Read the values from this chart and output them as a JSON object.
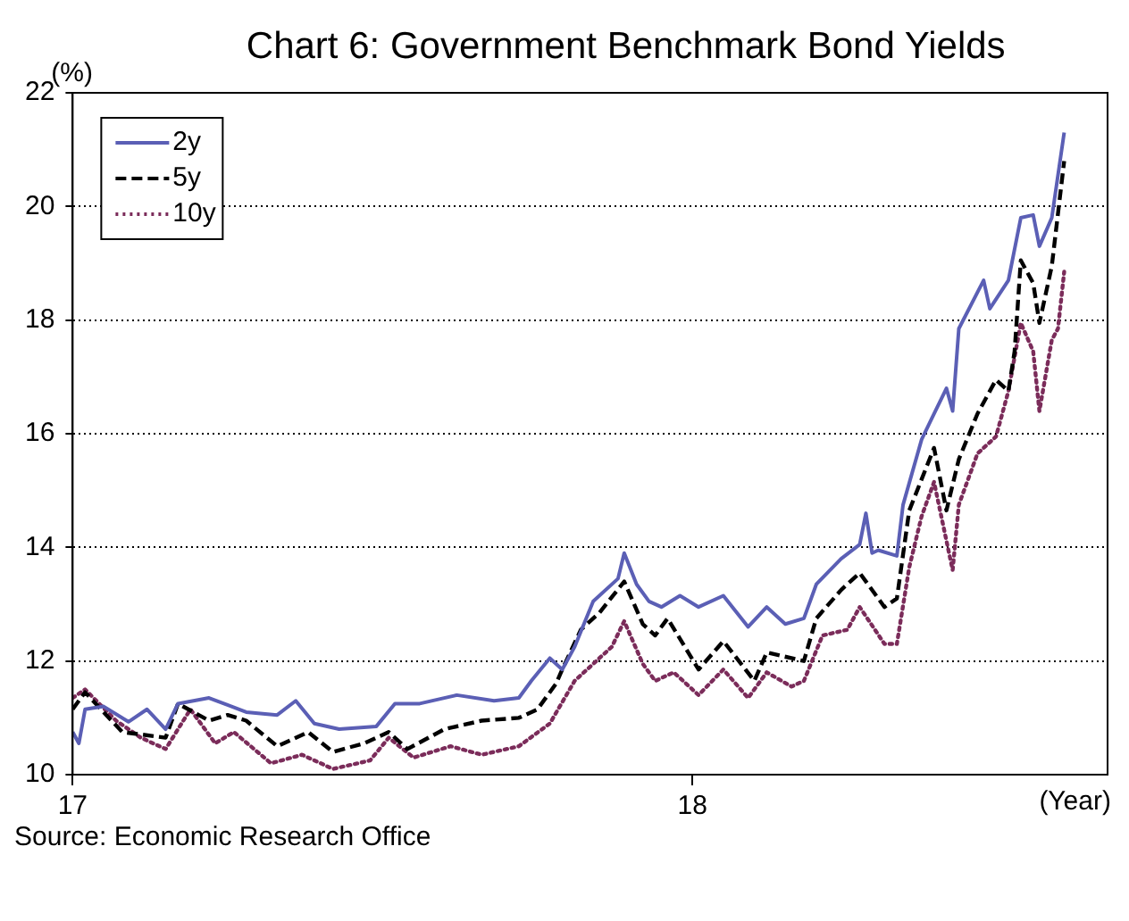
{
  "chart_data": {
    "type": "line",
    "title": "Chart 6: Government Benchmark Bond Yields",
    "ylabel": "(%)",
    "xlabel": "(Year)",
    "annotations": [
      "Source: Economic Research Office"
    ],
    "xlim": [
      17,
      18.67
    ],
    "xticks": [
      17,
      18
    ],
    "ylim": [
      10,
      22
    ],
    "yticks": [
      10,
      12,
      14,
      16,
      18,
      20,
      22
    ],
    "grid": "y",
    "legend": "top left",
    "marker": "none",
    "series": [
      {
        "name": "2y",
        "color": "#5b5fb5",
        "line_style": "solid",
        "x": [
          17.0,
          17.01,
          17.02,
          17.05,
          17.09,
          17.12,
          17.15,
          17.17,
          17.22,
          17.28,
          17.33,
          17.36,
          17.39,
          17.43,
          17.49,
          17.52,
          17.56,
          17.62,
          17.68,
          17.72,
          17.74,
          17.77,
          17.79,
          17.81,
          17.84,
          17.88,
          17.89,
          17.91,
          17.93,
          17.95,
          17.98,
          18.01,
          18.05,
          18.09,
          18.12,
          18.15,
          18.18,
          18.2,
          18.24,
          18.27,
          18.28,
          18.29,
          18.3,
          18.33,
          18.34,
          18.37,
          18.39,
          18.41,
          18.42,
          18.43,
          18.47,
          18.48,
          18.51,
          18.53,
          18.55,
          18.56,
          18.58,
          18.6
        ],
        "values": [
          10.75,
          10.55,
          11.15,
          11.2,
          10.93,
          11.15,
          10.8,
          11.25,
          11.35,
          11.1,
          11.05,
          11.3,
          10.9,
          10.8,
          10.85,
          11.25,
          11.25,
          11.4,
          11.3,
          11.35,
          11.65,
          12.05,
          11.85,
          12.25,
          13.05,
          13.45,
          13.9,
          13.35,
          13.05,
          12.95,
          13.15,
          12.95,
          13.15,
          12.6,
          12.95,
          12.65,
          12.75,
          13.35,
          13.8,
          14.05,
          14.6,
          13.9,
          13.95,
          13.85,
          14.75,
          15.9,
          16.35,
          16.8,
          16.4,
          17.85,
          18.7,
          18.2,
          18.7,
          19.8,
          19.85,
          19.3,
          19.8,
          21.3
        ]
      },
      {
        "name": "5y",
        "color": "#000000",
        "line_style": "dashed",
        "x": [
          17.0,
          17.02,
          17.08,
          17.15,
          17.17,
          17.22,
          17.25,
          17.28,
          17.33,
          17.38,
          17.42,
          17.47,
          17.51,
          17.54,
          17.6,
          17.66,
          17.72,
          17.75,
          17.78,
          17.79,
          17.82,
          17.85,
          17.89,
          17.92,
          17.94,
          17.96,
          18.01,
          18.05,
          18.1,
          18.12,
          18.18,
          18.2,
          18.24,
          18.27,
          18.31,
          18.33,
          18.35,
          18.39,
          18.41,
          18.43,
          18.46,
          18.49,
          18.51,
          18.52,
          18.53,
          18.55,
          18.56,
          18.58,
          18.6
        ],
        "values": [
          11.15,
          11.45,
          10.75,
          10.65,
          11.25,
          10.95,
          11.05,
          10.95,
          10.5,
          10.75,
          10.4,
          10.55,
          10.75,
          10.45,
          10.8,
          10.95,
          11.0,
          11.15,
          11.6,
          11.85,
          12.55,
          12.85,
          13.4,
          12.65,
          12.45,
          12.75,
          11.85,
          12.35,
          11.65,
          12.15,
          12.0,
          12.75,
          13.25,
          13.55,
          12.95,
          13.1,
          14.65,
          15.75,
          14.65,
          15.55,
          16.35,
          16.95,
          16.75,
          17.45,
          19.05,
          18.65,
          17.95,
          18.95,
          20.8
        ]
      },
      {
        "name": "10y",
        "color": "#7b2c5a",
        "line_style": "dotted",
        "x": [
          17.0,
          17.02,
          17.07,
          17.11,
          17.15,
          17.19,
          17.23,
          17.26,
          17.32,
          17.37,
          17.42,
          17.48,
          17.51,
          17.55,
          17.61,
          17.66,
          17.72,
          17.77,
          17.81,
          17.83,
          17.87,
          17.89,
          17.92,
          17.94,
          17.97,
          18.01,
          18.05,
          18.09,
          18.12,
          18.16,
          18.18,
          18.21,
          18.25,
          18.27,
          18.31,
          18.33,
          18.35,
          18.37,
          18.39,
          18.42,
          18.43,
          18.46,
          18.49,
          18.51,
          18.53,
          18.55,
          18.56,
          18.58,
          18.59,
          18.6
        ],
        "values": [
          11.35,
          11.5,
          10.95,
          10.65,
          10.45,
          11.15,
          10.55,
          10.75,
          10.2,
          10.35,
          10.1,
          10.25,
          10.65,
          10.3,
          10.5,
          10.35,
          10.5,
          10.9,
          11.65,
          11.85,
          12.25,
          12.7,
          11.95,
          11.65,
          11.8,
          11.4,
          11.85,
          11.35,
          11.8,
          11.55,
          11.65,
          12.45,
          12.55,
          12.95,
          12.3,
          12.3,
          13.65,
          14.55,
          15.15,
          13.6,
          14.75,
          15.65,
          15.95,
          16.75,
          17.95,
          17.45,
          16.4,
          17.65,
          17.85,
          18.85
        ]
      }
    ]
  }
}
